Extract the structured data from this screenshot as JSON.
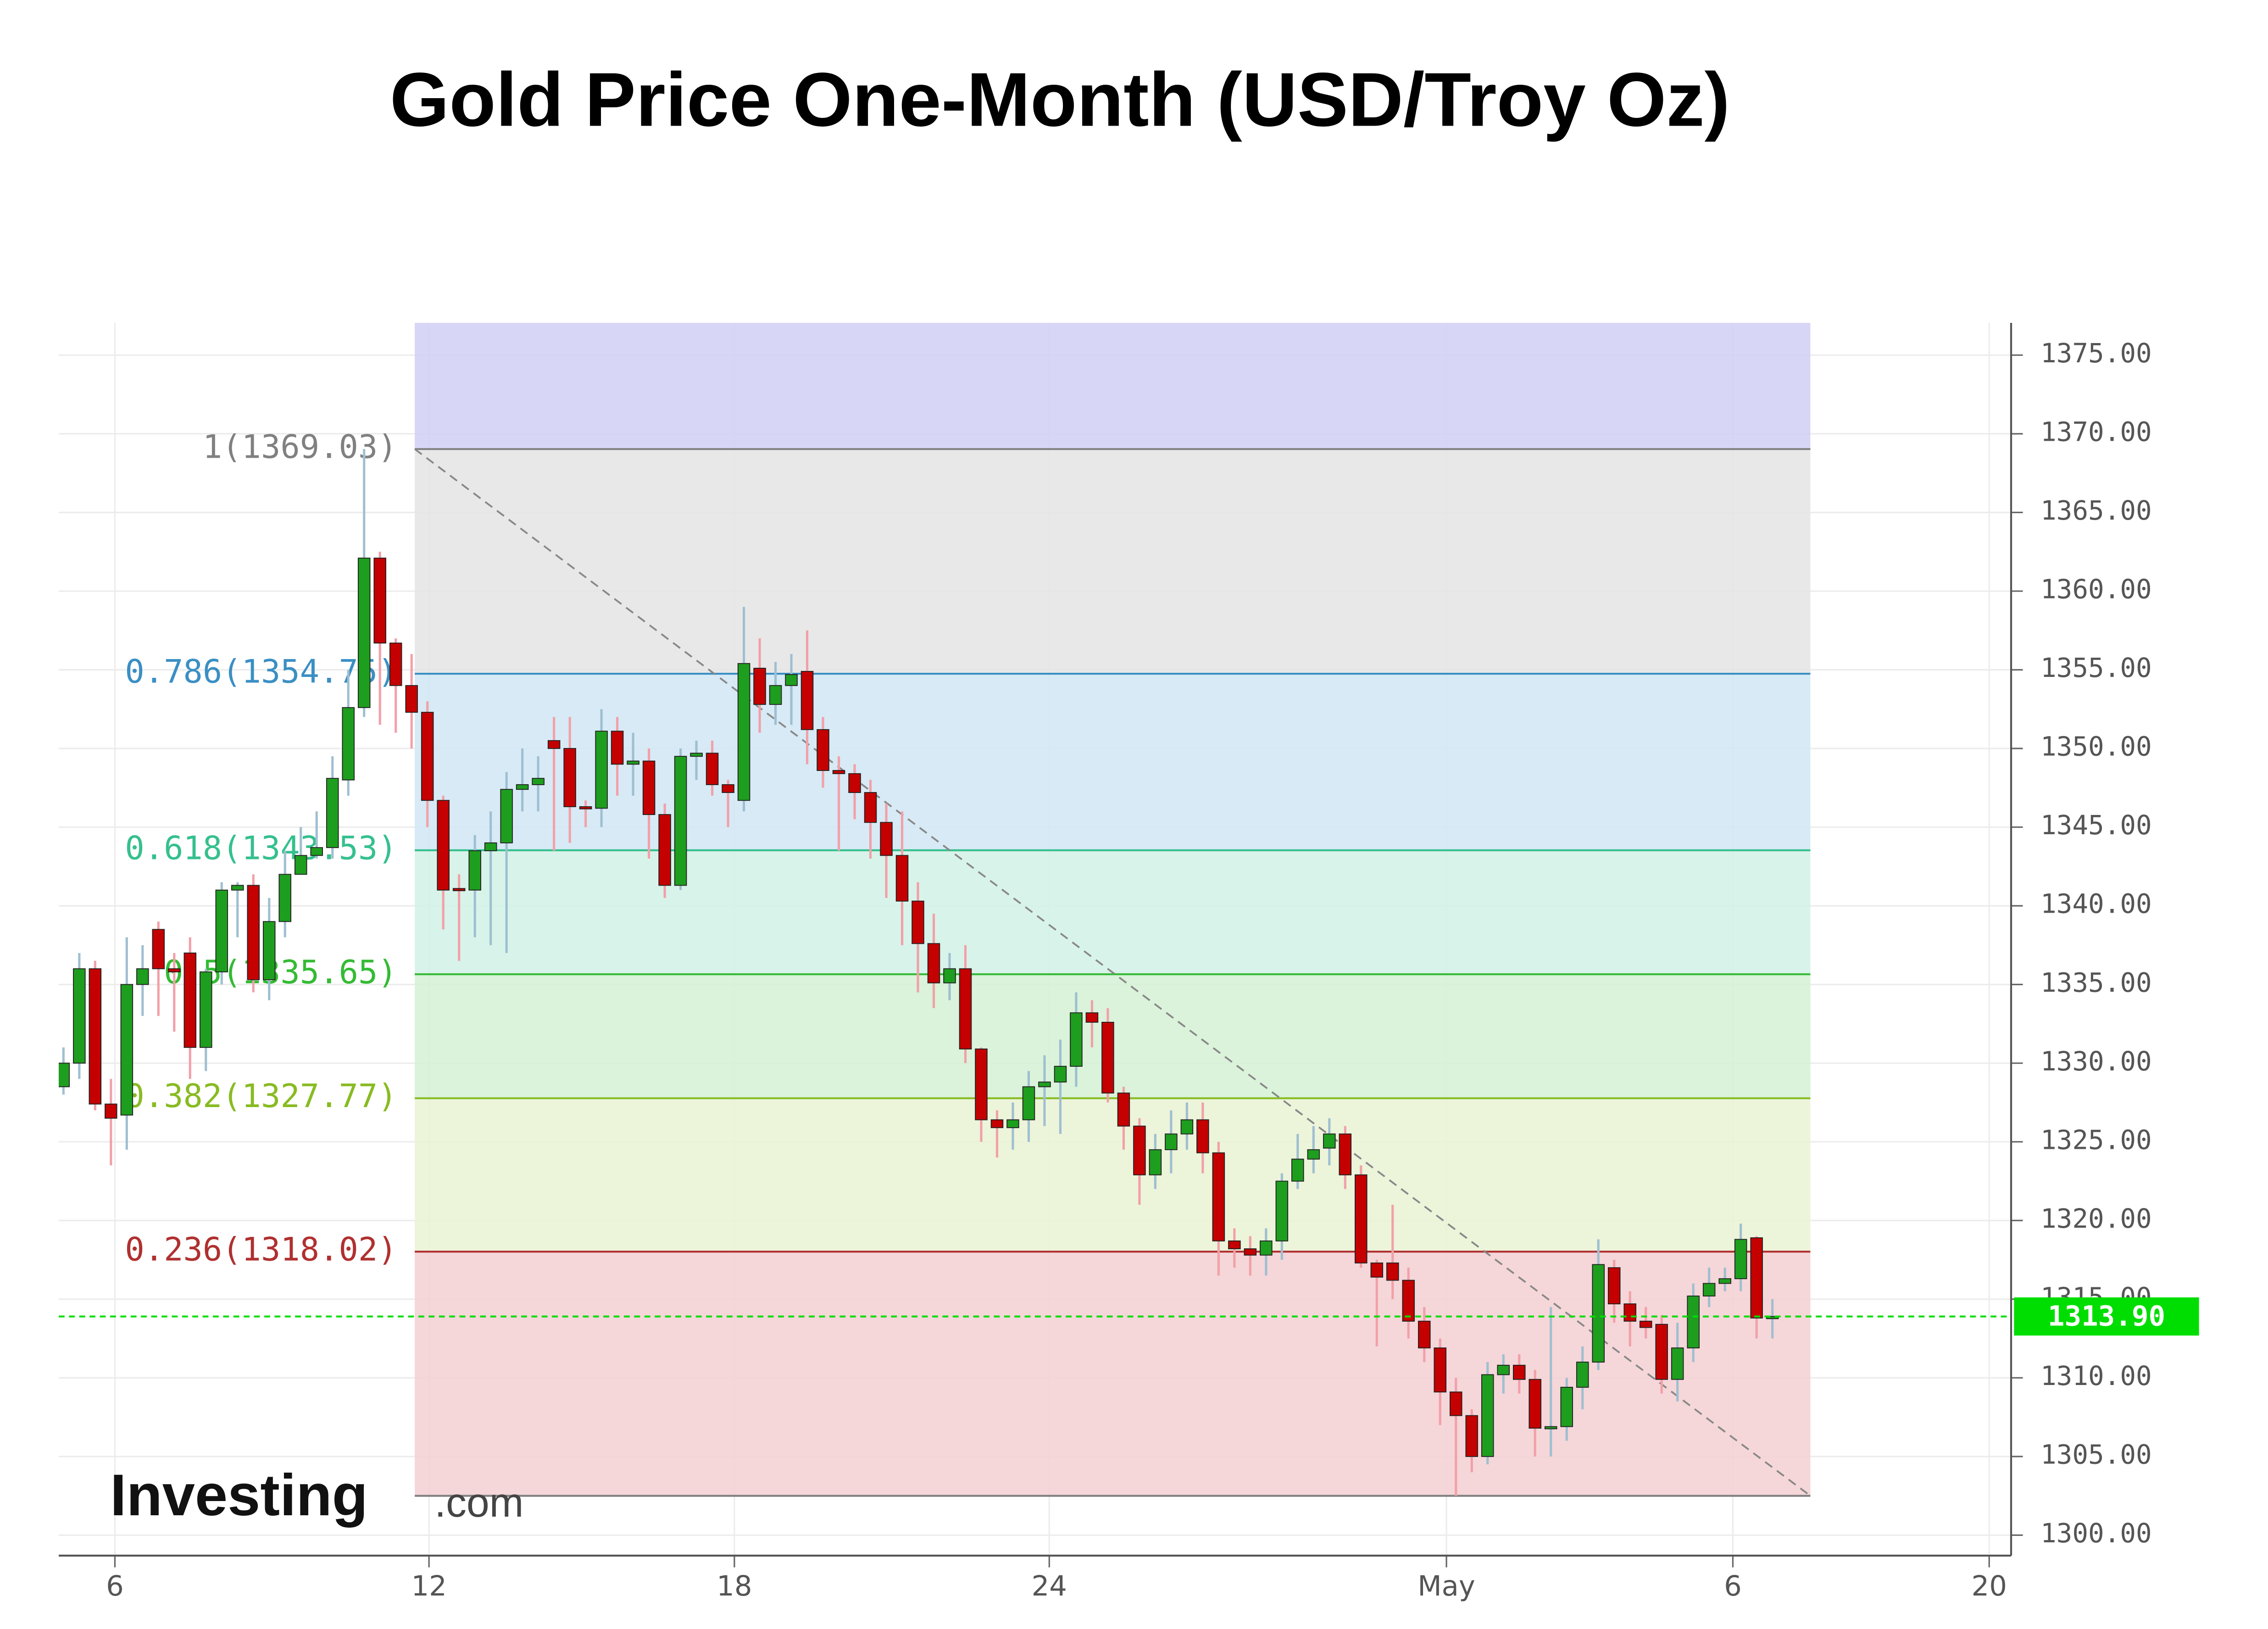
{
  "chart_data": {
    "type": "candlestick",
    "title": "Gold Price One-Month (USD/Troy Oz)",
    "brand": "Investing",
    "brand_suffix": ".com",
    "x": [
      0,
      1,
      2,
      3,
      4,
      5,
      6,
      7,
      8,
      9,
      10,
      11,
      12,
      13,
      14,
      15,
      16,
      17,
      18,
      19,
      20,
      21,
      22,
      23,
      24,
      25,
      26,
      27,
      28,
      29,
      30,
      31,
      32,
      33,
      34,
      35,
      36,
      37,
      38,
      39,
      40,
      41,
      42,
      43,
      44,
      45,
      46,
      47,
      48,
      49,
      50,
      51,
      52,
      53,
      54,
      55,
      56,
      57,
      58,
      59,
      60,
      61,
      62,
      63,
      64,
      65,
      66,
      67,
      68,
      69,
      70,
      71,
      72,
      73,
      74,
      75,
      76,
      77,
      78,
      79,
      80,
      81,
      82,
      83,
      84,
      85,
      86,
      87,
      88,
      89,
      90,
      91,
      92,
      93,
      94,
      95,
      96,
      97,
      98,
      99,
      100,
      101,
      102,
      103,
      104,
      105,
      106,
      107,
      108
    ],
    "open": [
      1328.5,
      1330,
      1336,
      1327.4,
      1326.7,
      1335,
      1338.5,
      1336,
      1337,
      1331,
      1335.8,
      1341,
      1341.3,
      1335.3,
      1339,
      1342,
      1343.2,
      1343.7,
      1348,
      1352.6,
      1362.1,
      1356.7,
      1354,
      1352.3,
      1346.7,
      1341.1,
      1341,
      1343.5,
      1344,
      1347.4,
      1347.7,
      1350.5,
      1350,
      1346.3,
      1346.2,
      1351.1,
      1349,
      1349.2,
      1345.8,
      1341.3,
      1349.5,
      1349.7,
      1347.7,
      1346.7,
      1355.1,
      1352.8,
      1354,
      1354.9,
      1351.2,
      1348.6,
      1348.4,
      1347.2,
      1345.3,
      1343.2,
      1340.3,
      1337.6,
      1335.1,
      1336,
      1330.9,
      1326.4,
      1325.9,
      1326.4,
      1328.5,
      1328.8,
      1329.8,
      1333.2,
      1332.6,
      1328.1,
      1326,
      1322.9,
      1324.5,
      1325.5,
      1326.4,
      1324.3,
      1318.7,
      1318.2,
      1317.8,
      1318.7,
      1322.5,
      1323.9,
      1324.6,
      1325.5,
      1322.9,
      1317.3,
      1317.3,
      1316.2,
      1313.6,
      1311.9,
      1309.1,
      1307.6,
      1305,
      1310.2,
      1310.8,
      1309.9,
      1306.8,
      1306.9,
      1309.4,
      1311,
      1317,
      1314.7,
      1313.6,
      1313.4,
      1309.9,
      1311.9,
      1315.2,
      1316,
      1316.3,
      1318.9,
      1313.8
    ],
    "high": [
      1331,
      1337,
      1336.5,
      1329,
      1338,
      1337.5,
      1339,
      1337,
      1338,
      1336,
      1341.5,
      1341.5,
      1342,
      1340.5,
      1343.5,
      1345,
      1346,
      1349.5,
      1355,
      1369.03,
      1362.5,
      1357,
      1356,
      1353,
      1347,
      1342,
      1344.5,
      1346,
      1348.5,
      1350,
      1349.5,
      1352,
      1352,
      1346.7,
      1352.5,
      1352,
      1351,
      1350,
      1346.5,
      1350,
      1350.5,
      1350.5,
      1348,
      1359,
      1357,
      1355.5,
      1356,
      1357.5,
      1352,
      1349.5,
      1349,
      1348,
      1346.5,
      1346,
      1341.5,
      1339.5,
      1337,
      1337.5,
      1331,
      1327,
      1327.5,
      1329.5,
      1330.5,
      1331.5,
      1334.5,
      1334,
      1333.5,
      1328.5,
      1326.5,
      1325.5,
      1327,
      1327.5,
      1327.5,
      1325,
      1319.5,
      1319,
      1319.5,
      1323,
      1325.5,
      1326,
      1326.5,
      1326,
      1323.5,
      1317.5,
      1321,
      1317,
      1314.5,
      1312.5,
      1310,
      1308,
      1311,
      1311.5,
      1311.5,
      1310.5,
      1314.5,
      1310,
      1312,
      1318.8,
      1317.5,
      1315.5,
      1314.5,
      1314,
      1313.5,
      1316,
      1317,
      1317,
      1319.8,
      1319,
      1315
    ],
    "low": [
      1328,
      1329,
      1327,
      1323.5,
      1324.5,
      1333,
      1333,
      1332,
      1329,
      1329.5,
      1335,
      1338,
      1334.5,
      1334,
      1338,
      1342,
      1343,
      1343,
      1347,
      1352,
      1351.5,
      1351,
      1350,
      1345,
      1338.5,
      1336.5,
      1338,
      1337.5,
      1337,
      1346,
      1346,
      1343.5,
      1344,
      1345,
      1345,
      1347,
      1347,
      1343,
      1340.5,
      1341,
      1348,
      1347,
      1345,
      1346,
      1351,
      1351.5,
      1351.5,
      1349,
      1347.5,
      1343.5,
      1345.5,
      1343,
      1340.5,
      1337.5,
      1334.5,
      1333.5,
      1334,
      1330,
      1325,
      1324,
      1324.5,
      1325,
      1326,
      1325.5,
      1328.5,
      1331,
      1327.5,
      1324.5,
      1321,
      1322,
      1323,
      1324.5,
      1323,
      1316.5,
      1317,
      1316.5,
      1316.5,
      1317.5,
      1322,
      1323,
      1323.5,
      1322,
      1317,
      1312,
      1315,
      1312.5,
      1311,
      1307,
      1302.5,
      1304,
      1304.5,
      1309,
      1309,
      1305,
      1305,
      1306,
      1308,
      1310.5,
      1313.5,
      1312,
      1312.5,
      1309,
      1308.5,
      1311,
      1314.5,
      1315.5,
      1315.5,
      1312.5,
      1312.5
    ],
    "close": [
      1330,
      1336,
      1327.4,
      1326.5,
      1335,
      1336,
      1336,
      1335.8,
      1331,
      1335.8,
      1341,
      1341.3,
      1335.3,
      1339,
      1342,
      1343.2,
      1343.7,
      1348.1,
      1352.6,
      1362.1,
      1356.7,
      1354,
      1352.3,
      1346.7,
      1341,
      1341,
      1343.5,
      1344,
      1347.4,
      1347.7,
      1348.1,
      1350,
      1346.3,
      1346.2,
      1351.1,
      1349,
      1349.2,
      1345.8,
      1341.3,
      1349.5,
      1349.7,
      1347.7,
      1347.2,
      1355.4,
      1352.8,
      1354,
      1354.7,
      1351.2,
      1348.6,
      1348.4,
      1347.2,
      1345.3,
      1343.2,
      1340.3,
      1337.6,
      1335.1,
      1336,
      1330.9,
      1326.4,
      1325.9,
      1326.4,
      1328.5,
      1328.8,
      1329.8,
      1333.2,
      1332.6,
      1328.1,
      1326,
      1322.9,
      1324.5,
      1325.5,
      1326.4,
      1324.3,
      1318.7,
      1318.2,
      1317.8,
      1318.7,
      1322.5,
      1323.9,
      1324.5,
      1325.5,
      1322.9,
      1317.3,
      1316.4,
      1316.2,
      1313.6,
      1311.9,
      1309.1,
      1307.6,
      1305,
      1310.2,
      1310.8,
      1309.9,
      1306.8,
      1306.9,
      1309.4,
      1311,
      1317.2,
      1314.7,
      1313.6,
      1313.2,
      1309.9,
      1311.9,
      1315.2,
      1316,
      1316.3,
      1318.8,
      1313.8,
      1313.9
    ],
    "up_color": "#1e9e1e",
    "down_color": "#c40000",
    "up_wick_color": "#9fbfd0",
    "down_wick_color": "#f2a0a8",
    "xlim": [
      -0.3,
      122.9
    ],
    "xticks": [
      {
        "value": 3.25,
        "label": "6"
      },
      {
        "value": 23.1,
        "label": "12"
      },
      {
        "value": 42.4,
        "label": "18"
      },
      {
        "value": 62.3,
        "label": "24"
      },
      {
        "value": 87.4,
        "label": "May"
      },
      {
        "value": 105.5,
        "label": "6"
      },
      {
        "value": 121.7,
        "label": "20"
      }
    ],
    "ylim": [
      1298.7,
      1377.05
    ],
    "yticks": [
      {
        "value": 1300,
        "label": "1300.00"
      },
      {
        "value": 1305,
        "label": "1305.00"
      },
      {
        "value": 1310,
        "label": "1310.00"
      },
      {
        "value": 1315,
        "label": "1315.00"
      },
      {
        "value": 1320,
        "label": "1320.00"
      },
      {
        "value": 1325,
        "label": "1325.00"
      },
      {
        "value": 1330,
        "label": "1330.00"
      },
      {
        "value": 1335,
        "label": "1335.00"
      },
      {
        "value": 1340,
        "label": "1340.00"
      },
      {
        "value": 1345,
        "label": "1345.00"
      },
      {
        "value": 1350,
        "label": "1350.00"
      },
      {
        "value": 1355,
        "label": "1355.00"
      },
      {
        "value": 1360,
        "label": "1360.00"
      },
      {
        "value": 1365,
        "label": "1365.00"
      },
      {
        "value": 1370,
        "label": "1370.00"
      },
      {
        "value": 1375,
        "label": "1375.00"
      }
    ],
    "grid": true,
    "fibonacci": {
      "start": 22.2,
      "end": 110.4,
      "top_fill": "#d3d1f5",
      "levels": [
        {
          "label": "1(1369.03)",
          "value": 1369.03,
          "color": "#808080",
          "fill": "#e5e5e5"
        },
        {
          "label": "0.786(1354.75)",
          "value": 1354.75,
          "color": "#3a8fc4",
          "fill": "#d3e8f5"
        },
        {
          "label": "0.618(1343.53)",
          "value": 1343.53,
          "color": "#35c08e",
          "fill": "#d4f2e8"
        },
        {
          "label": "0.5(1335.65)",
          "value": 1335.65,
          "color": "#33bb33",
          "fill": "#d6f2d6"
        },
        {
          "label": "0.382(1327.77)",
          "value": 1327.77,
          "color": "#88bb22",
          "fill": "#eaf3d6"
        },
        {
          "label": "0.236(1318.02)",
          "value": 1318.02,
          "color": "#b03030",
          "fill": "#f4d2d5"
        }
      ],
      "low": 1302.5,
      "low_color": "#808080",
      "trend_color": "#888888"
    },
    "last_price": {
      "value": 1313.9,
      "label": "1313.90",
      "color": "#00dd00"
    }
  }
}
